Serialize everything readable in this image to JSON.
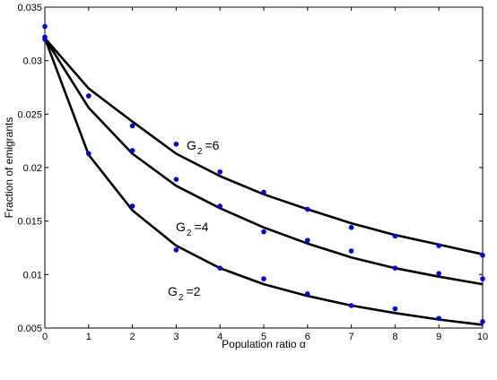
{
  "chart_data": {
    "type": "line",
    "xlabel": "Population ratio α",
    "ylabel": "Fraction of emigrants",
    "xlim": [
      0,
      10
    ],
    "ylim": [
      0.005,
      0.035
    ],
    "xticks": [
      "0",
      "1",
      "2",
      "3",
      "4",
      "5",
      "6",
      "7",
      "8",
      "9",
      "10"
    ],
    "yticks": [
      "0.005",
      "0.01",
      "0.015",
      "0.02",
      "0.025",
      "0.03",
      "0.035"
    ],
    "grid": false,
    "line_color": "#000000",
    "point_color": "#0000ee",
    "series": [
      {
        "label_main": "G",
        "label_sub": "2",
        "label_tail": "=6",
        "x": [
          0,
          1,
          2,
          3,
          4,
          5,
          6,
          7,
          8,
          9,
          10
        ],
        "line": [
          0.0321,
          0.0274,
          0.0243,
          0.0213,
          0.0192,
          0.0175,
          0.0161,
          0.0148,
          0.0137,
          0.0128,
          0.0119
        ],
        "points": [
          0.0332,
          0.0267,
          0.0239,
          0.0222,
          0.0196,
          0.0177,
          0.0161,
          0.0144,
          0.0136,
          0.0127,
          0.0118
        ]
      },
      {
        "label_main": "G",
        "label_sub": "2",
        "label_tail": "=4",
        "x": [
          0,
          1,
          2,
          3,
          4,
          5,
          6,
          7,
          8,
          9,
          10
        ],
        "line": [
          0.0321,
          0.0256,
          0.0213,
          0.0183,
          0.0162,
          0.0144,
          0.0129,
          0.0116,
          0.0106,
          0.0098,
          0.0091
        ],
        "points": [
          0.0322,
          0.0267,
          0.0216,
          0.0189,
          0.0164,
          0.014,
          0.0132,
          0.0122,
          0.0106,
          0.0101,
          0.0096
        ]
      },
      {
        "label_main": "G",
        "label_sub": "2",
        "label_tail": "=2",
        "x": [
          0,
          1,
          2,
          3,
          4,
          5,
          6,
          7,
          8,
          9,
          10
        ],
        "line": [
          0.0321,
          0.0212,
          0.016,
          0.0127,
          0.0106,
          0.0091,
          0.008,
          0.0071,
          0.0064,
          0.0058,
          0.0053
        ],
        "points": [
          0.032,
          0.0213,
          0.0164,
          0.0123,
          0.0106,
          0.0096,
          0.0082,
          0.0071,
          0.0068,
          0.0059,
          0.0056
        ]
      }
    ]
  }
}
